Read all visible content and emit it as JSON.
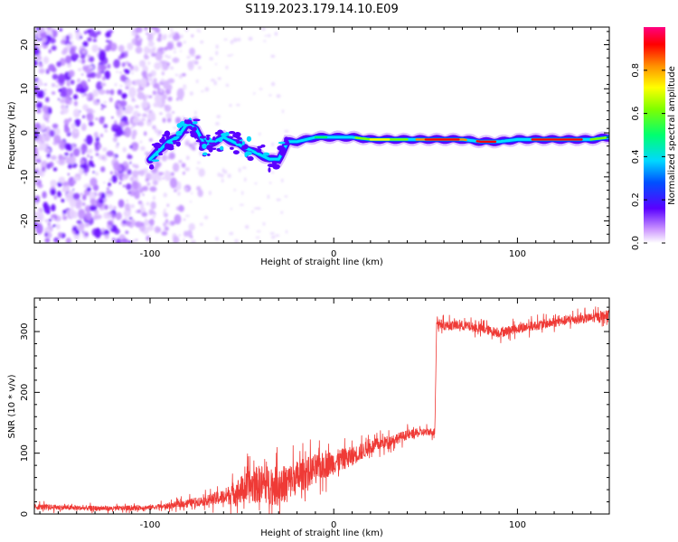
{
  "title": "S119.2023.179.14.10.E09",
  "chart_data": [
    {
      "type": "heatmap",
      "xlabel": "Height of straight line (km)",
      "ylabel": "Frequency (Hz)",
      "xlim": [
        -163,
        150
      ],
      "ylim": [
        -25,
        24
      ],
      "xticks": [
        -100,
        0,
        100
      ],
      "yticks": [
        -20,
        -10,
        0,
        10,
        20
      ],
      "colorbar": {
        "label": "Normalized spectral amplitude",
        "range": [
          0,
          1
        ],
        "ticks": [
          0.0,
          0.2,
          0.4,
          0.6,
          0.8
        ]
      },
      "ridge": {
        "x": [
          -100,
          -95,
          -90,
          -85,
          -80,
          -75,
          -70,
          -65,
          -60,
          -55,
          -50,
          -45,
          -40,
          -35,
          -30,
          -25,
          -20,
          -15,
          -10,
          -5,
          0,
          10,
          20,
          30,
          40,
          50,
          60,
          70,
          80,
          90,
          100,
          110,
          120,
          130,
          140,
          150
        ],
        "y": [
          -6,
          -4,
          -2,
          -1,
          2,
          1,
          -3,
          -2,
          -1,
          -2,
          -3,
          -4,
          -5,
          -6,
          -6,
          -2,
          -2,
          -1.5,
          -1,
          -1,
          -1,
          -1,
          -1.5,
          -1.5,
          -1.5,
          -1.5,
          -1.5,
          -1.5,
          -2,
          -2,
          -1.5,
          -1.5,
          -1.5,
          -1.5,
          -1.5,
          -1
        ]
      }
    },
    {
      "type": "line",
      "xlabel": "Height of straight line (km)",
      "ylabel": "SNR (10 * v/v)",
      "xlim": [
        -163,
        150
      ],
      "ylim": [
        0,
        355
      ],
      "xticks": [
        -100,
        0,
        100
      ],
      "yticks": [
        0,
        100,
        200,
        300
      ],
      "color": "#ef3a36",
      "series": [
        {
          "x": [
            -163,
            -140,
            -120,
            -100,
            -90,
            -80,
            -70,
            -60,
            -50,
            -40,
            -30,
            -20,
            -10,
            0,
            10,
            20,
            30,
            40,
            50,
            55,
            56,
            60,
            70,
            80,
            90,
            100,
            110,
            120,
            130,
            140,
            150
          ],
          "y": [
            12,
            10,
            9,
            11,
            13,
            18,
            22,
            28,
            40,
            50,
            45,
            60,
            75,
            85,
            95,
            110,
            120,
            130,
            135,
            135,
            315,
            310,
            310,
            305,
            298,
            305,
            310,
            315,
            320,
            322,
            328
          ],
          "noise": [
            6,
            5,
            5,
            5,
            6,
            8,
            10,
            16,
            30,
            40,
            40,
            35,
            30,
            25,
            20,
            15,
            12,
            10,
            8,
            8,
            10,
            10,
            10,
            10,
            10,
            10,
            10,
            10,
            10,
            10,
            10
          ]
        }
      ]
    }
  ]
}
